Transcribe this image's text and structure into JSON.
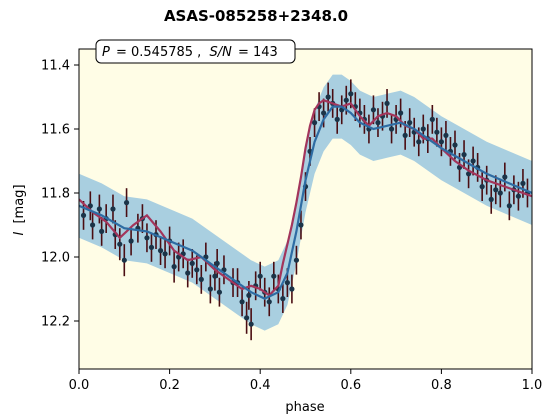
{
  "chart_data": {
    "type": "scatter",
    "title": "ASAS-085258+2348.0",
    "annotation": "P = 0.545785 , S/N = 143",
    "annotation_parts": {
      "p_symbol": "P",
      "p_value": "= 0.545785 ,",
      "sn_symbol": "S/N",
      "sn_value": "= 143"
    },
    "xlabel": "phase",
    "ylabel_symbol": "I",
    "ylabel_unit": "[mag]",
    "xlim": [
      0.0,
      1.0
    ],
    "ylim": [
      12.35,
      11.35
    ],
    "y_inverted": true,
    "xticks": [
      "0.0",
      "0.2",
      "0.4",
      "0.6",
      "0.8",
      "1.0"
    ],
    "yticks": [
      "11.4",
      "11.6",
      "11.8",
      "12.0",
      "12.2"
    ],
    "grid": false,
    "colors": {
      "plot_background": "#fffde6",
      "band": "#a9cfe0",
      "fit_line": "#2e6ca3",
      "model_line": "#a3355b",
      "points": "#1b3448",
      "errorbars": "#4a0d12"
    },
    "band_halfwidth": 0.1,
    "fit_curve": {
      "name": "fit",
      "x": [
        0.0,
        0.05,
        0.1,
        0.15,
        0.2,
        0.25,
        0.3,
        0.35,
        0.38,
        0.41,
        0.44,
        0.46,
        0.48,
        0.5,
        0.52,
        0.54,
        0.56,
        0.58,
        0.6,
        0.62,
        0.65,
        0.68,
        0.71,
        0.74,
        0.77,
        0.8,
        0.85,
        0.9,
        0.95,
        1.0
      ],
      "y": [
        11.84,
        11.87,
        11.91,
        11.92,
        11.95,
        11.98,
        12.03,
        12.08,
        12.11,
        12.13,
        12.11,
        12.05,
        11.92,
        11.76,
        11.64,
        11.57,
        11.53,
        11.53,
        11.55,
        11.58,
        11.6,
        11.59,
        11.58,
        11.6,
        11.63,
        11.66,
        11.7,
        11.74,
        11.77,
        11.8
      ]
    },
    "model_curve": {
      "name": "model",
      "x": [
        0.0,
        0.03,
        0.06,
        0.09,
        0.12,
        0.15,
        0.18,
        0.21,
        0.24,
        0.27,
        0.3,
        0.33,
        0.36,
        0.38,
        0.4,
        0.42,
        0.44,
        0.45,
        0.46,
        0.47,
        0.48,
        0.49,
        0.5,
        0.51,
        0.52,
        0.53,
        0.54,
        0.56,
        0.58,
        0.6,
        0.62,
        0.64,
        0.66,
        0.68,
        0.7,
        0.72,
        0.74,
        0.76,
        0.78,
        0.8,
        0.83,
        0.86,
        0.9,
        0.94,
        1.0
      ],
      "y": [
        11.82,
        11.86,
        11.89,
        11.94,
        11.9,
        11.87,
        11.92,
        11.98,
        12.01,
        12.0,
        12.04,
        12.07,
        12.1,
        12.09,
        12.1,
        12.12,
        12.09,
        12.02,
        11.96,
        11.9,
        11.83,
        11.75,
        11.66,
        11.59,
        11.54,
        11.52,
        11.51,
        11.52,
        11.53,
        11.52,
        11.56,
        11.59,
        11.56,
        11.55,
        11.56,
        11.59,
        11.6,
        11.63,
        11.63,
        11.66,
        11.7,
        11.73,
        11.76,
        11.78,
        11.81
      ]
    },
    "points": {
      "x": [
        0.01,
        0.025,
        0.03,
        0.045,
        0.05,
        0.06,
        0.075,
        0.08,
        0.09,
        0.1,
        0.105,
        0.115,
        0.13,
        0.14,
        0.15,
        0.16,
        0.17,
        0.18,
        0.19,
        0.2,
        0.21,
        0.22,
        0.23,
        0.24,
        0.25,
        0.26,
        0.27,
        0.28,
        0.29,
        0.3,
        0.305,
        0.31,
        0.32,
        0.34,
        0.35,
        0.36,
        0.37,
        0.375,
        0.38,
        0.39,
        0.4,
        0.41,
        0.42,
        0.43,
        0.44,
        0.45,
        0.46,
        0.47,
        0.48,
        0.49,
        0.5,
        0.51,
        0.52,
        0.53,
        0.54,
        0.55,
        0.56,
        0.57,
        0.58,
        0.59,
        0.6,
        0.61,
        0.62,
        0.63,
        0.64,
        0.65,
        0.66,
        0.67,
        0.68,
        0.69,
        0.7,
        0.71,
        0.72,
        0.73,
        0.74,
        0.75,
        0.76,
        0.77,
        0.78,
        0.79,
        0.8,
        0.81,
        0.82,
        0.83,
        0.84,
        0.85,
        0.86,
        0.87,
        0.88,
        0.89,
        0.9,
        0.91,
        0.92,
        0.93,
        0.94,
        0.95,
        0.96,
        0.97,
        0.98,
        0.99
      ],
      "y": [
        11.87,
        11.84,
        11.9,
        11.85,
        11.92,
        11.88,
        11.85,
        11.93,
        11.96,
        12.01,
        11.83,
        11.95,
        11.91,
        11.88,
        11.94,
        11.97,
        11.93,
        11.98,
        11.99,
        11.95,
        12.03,
        12.0,
        11.99,
        12.05,
        12.02,
        12.04,
        12.07,
        12.0,
        12.1,
        12.06,
        12.02,
        12.11,
        12.04,
        12.08,
        12.08,
        12.14,
        12.19,
        12.12,
        12.21,
        12.09,
        12.06,
        12.11,
        12.14,
        12.06,
        12.1,
        12.13,
        12.08,
        12.1,
        12.01,
        11.9,
        11.78,
        11.67,
        11.58,
        11.53,
        11.55,
        11.5,
        11.52,
        11.57,
        11.54,
        11.51,
        11.49,
        11.53,
        11.55,
        11.57,
        11.6,
        11.54,
        11.58,
        11.56,
        11.52,
        11.6,
        11.57,
        11.55,
        11.62,
        11.58,
        11.61,
        11.64,
        11.6,
        11.63,
        11.57,
        11.61,
        11.64,
        11.62,
        11.67,
        11.65,
        11.72,
        11.68,
        11.74,
        11.7,
        11.72,
        11.78,
        11.76,
        11.82,
        11.79,
        11.8,
        11.75,
        11.84,
        11.79,
        11.81,
        11.77,
        11.8
      ],
      "yerr": [
        0.045,
        0.045,
        0.045,
        0.045,
        0.045,
        0.045,
        0.045,
        0.045,
        0.05,
        0.05,
        0.045,
        0.045,
        0.045,
        0.045,
        0.045,
        0.045,
        0.045,
        0.045,
        0.045,
        0.045,
        0.05,
        0.045,
        0.045,
        0.045,
        0.045,
        0.045,
        0.045,
        0.045,
        0.045,
        0.045,
        0.045,
        0.045,
        0.045,
        0.045,
        0.045,
        0.045,
        0.05,
        0.045,
        0.05,
        0.045,
        0.045,
        0.045,
        0.045,
        0.045,
        0.045,
        0.045,
        0.045,
        0.045,
        0.045,
        0.045,
        0.045,
        0.045,
        0.045,
        0.045,
        0.045,
        0.045,
        0.045,
        0.045,
        0.045,
        0.045,
        0.045,
        0.045,
        0.045,
        0.045,
        0.045,
        0.045,
        0.045,
        0.045,
        0.045,
        0.045,
        0.045,
        0.045,
        0.045,
        0.045,
        0.045,
        0.045,
        0.045,
        0.045,
        0.045,
        0.045,
        0.045,
        0.045,
        0.045,
        0.045,
        0.045,
        0.045,
        0.045,
        0.045,
        0.045,
        0.045,
        0.045,
        0.045,
        0.045,
        0.045,
        0.045,
        0.045,
        0.045,
        0.045,
        0.045,
        0.045
      ]
    }
  }
}
